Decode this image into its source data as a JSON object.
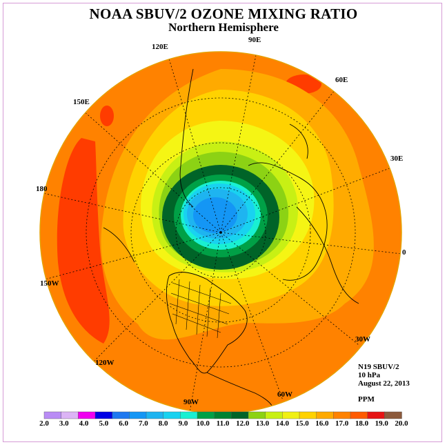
{
  "title": "NOAA SBUV/2 OZONE MIXING RATIO",
  "subtitle": "Northern Hemisphere",
  "longitude_labels": [
    "120E",
    "90E",
    "60E",
    "150E",
    "30E",
    "180",
    "0",
    "150W",
    "30W",
    "120W",
    "60W",
    "90W"
  ],
  "info": {
    "satellite": "N19 SBUV/2",
    "level": "10 hPa",
    "date": "August 22, 2013",
    "units": "PPM"
  },
  "legend": {
    "ticks": [
      "2.0",
      "3.0",
      "4.0",
      "5.0",
      "6.0",
      "7.0",
      "8.0",
      "9.0",
      "10.0",
      "11.0",
      "12.0",
      "13.0",
      "14.0",
      "15.0",
      "16.0",
      "17.0",
      "18.0",
      "19.0",
      "20.0"
    ],
    "colors": [
      "#b98cf5",
      "#dcb4f5",
      "#f000f0",
      "#0000e6",
      "#1e78f0",
      "#1496f5",
      "#1eb4f0",
      "#19d2f0",
      "#19f0d2",
      "#00a046",
      "#008232",
      "#006428",
      "#8cd214",
      "#c8f014",
      "#f0f014",
      "#ffd200",
      "#ffaa00",
      "#ff8200",
      "#ff5a00",
      "#e61414",
      "#8c5a3c"
    ]
  }
}
